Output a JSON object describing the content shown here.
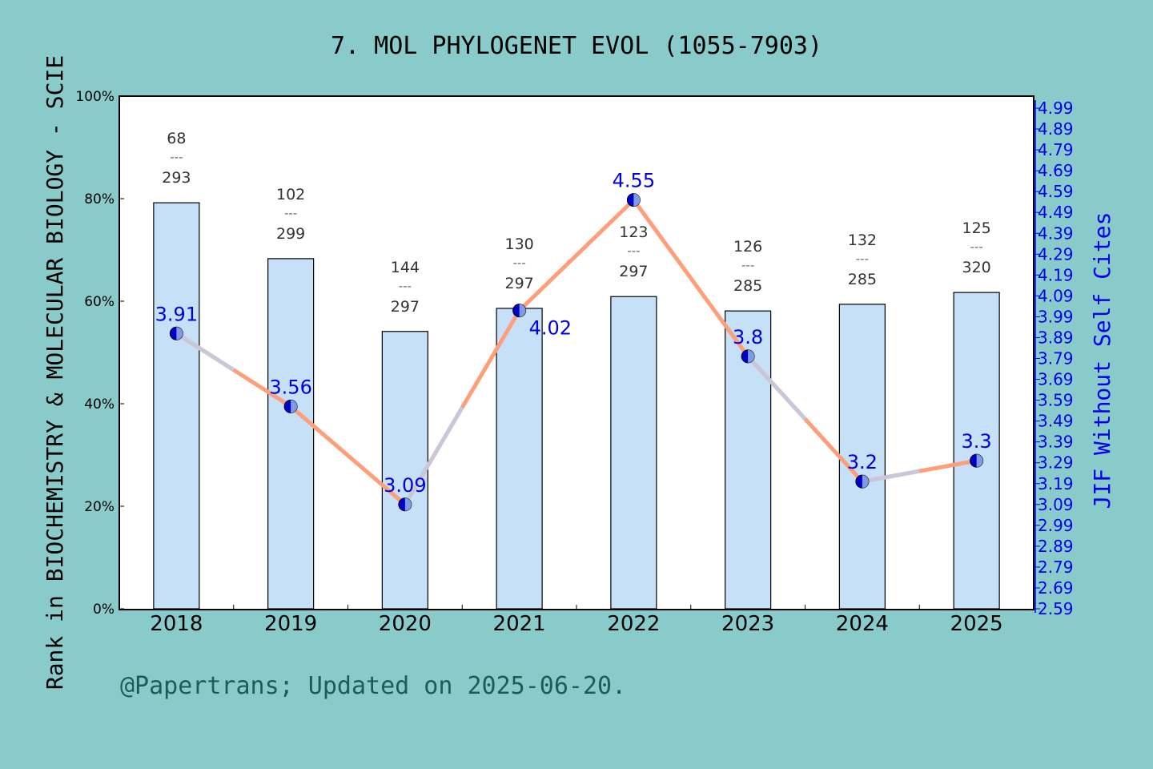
{
  "chart_data": {
    "type": "bar+line",
    "title": "7. MOL PHYLOGENET EVOL (1055-7903)",
    "ylabel_left": "Rank in BIOCHEMISTRY & MOLECULAR BIOLOGY - SCIE",
    "ylabel_right": "JIF Without Self Cites",
    "footer": "@Papertrans; Updated on 2025-06-20.",
    "categories": [
      "2018",
      "2019",
      "2020",
      "2021",
      "2022",
      "2023",
      "2024",
      "2025"
    ],
    "left_axis": {
      "ylim": [
        0,
        100
      ],
      "ticks": [
        "0%",
        "20%",
        "40%",
        "60%",
        "80%",
        "100%"
      ]
    },
    "right_axis": {
      "ylim": [
        2.59,
        4.99
      ],
      "ticks": [
        "2.59",
        "2.69",
        "2.79",
        "2.89",
        "2.99",
        "3.09",
        "3.19",
        "3.29",
        "3.39",
        "3.49",
        "3.59",
        "3.69",
        "3.79",
        "3.89",
        "3.99",
        "4.09",
        "4.19",
        "4.29",
        "4.39",
        "4.49",
        "4.59",
        "4.69",
        "4.79",
        "4.89",
        "4.99"
      ]
    },
    "bars": {
      "values": [
        79.2,
        68.3,
        54.1,
        58.6,
        60.9,
        58.1,
        59.4,
        61.7
      ],
      "rank": [
        "68",
        "102",
        "144",
        "130",
        "123",
        "126",
        "132",
        "125"
      ],
      "total": [
        "293",
        "299",
        "297",
        "297",
        "297",
        "285",
        "285",
        "320"
      ],
      "separator": "---",
      "color": "#c5e0f7"
    },
    "line": {
      "values": [
        3.91,
        3.56,
        3.09,
        4.02,
        4.55,
        3.8,
        3.2,
        3.3
      ],
      "labels": [
        "3.91",
        "3.56",
        "3.09",
        "4.02",
        "4.55",
        "3.8",
        "3.2",
        "3.3"
      ],
      "color": "#ff9e7a",
      "marker_color": "#0000cc",
      "label_color": "#0000dd"
    },
    "grid": false
  }
}
